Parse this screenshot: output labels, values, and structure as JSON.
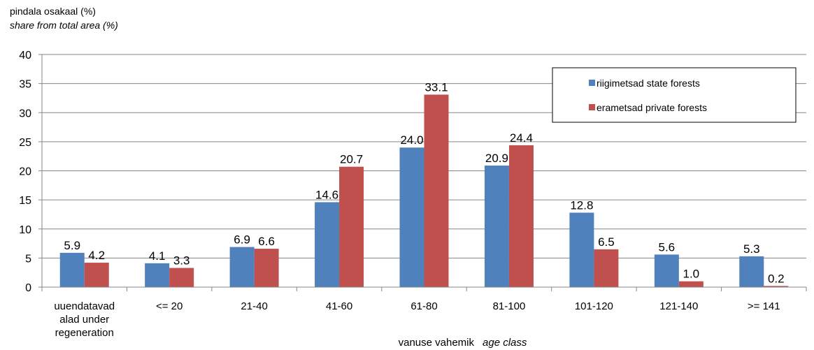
{
  "chart_data": {
    "type": "bar",
    "ylabel": "pindala osakaal (%)",
    "ylabel_en": "share from total area (%)",
    "xlabel": "vanuse vahemik",
    "xlabel_en": "age class",
    "ylim": [
      0,
      40
    ],
    "yticks": [
      0,
      5,
      10,
      15,
      20,
      25,
      30,
      35,
      40
    ],
    "grid": true,
    "legend_position": "top-right",
    "categories": [
      [
        "uuendatavad",
        "alad  under",
        "regeneration"
      ],
      [
        "<= 20"
      ],
      [
        "21-40"
      ],
      [
        "41-60"
      ],
      [
        "61-80"
      ],
      [
        "81-100"
      ],
      [
        "101-120"
      ],
      [
        "121-140"
      ],
      [
        ">= 141"
      ]
    ],
    "series": [
      {
        "name": "riigimetsad state forests",
        "color": "#4f81bd",
        "values": [
          5.9,
          4.1,
          6.9,
          14.6,
          24.0,
          20.9,
          12.8,
          5.6,
          5.3
        ],
        "labels": [
          "5.9",
          "4.1",
          "6.9",
          "14.6",
          "24.0",
          "20.9",
          "12.8",
          "5.6",
          "5.3"
        ]
      },
      {
        "name": "erametsad private forests",
        "color": "#c0504d",
        "values": [
          4.2,
          3.3,
          6.6,
          20.7,
          33.1,
          24.4,
          6.5,
          1.0,
          0.2
        ],
        "labels": [
          "4.2",
          "3.3",
          "6.6",
          "20.7",
          "33.1",
          "24.4",
          "6.5",
          "1.0",
          "0.2"
        ]
      }
    ]
  }
}
